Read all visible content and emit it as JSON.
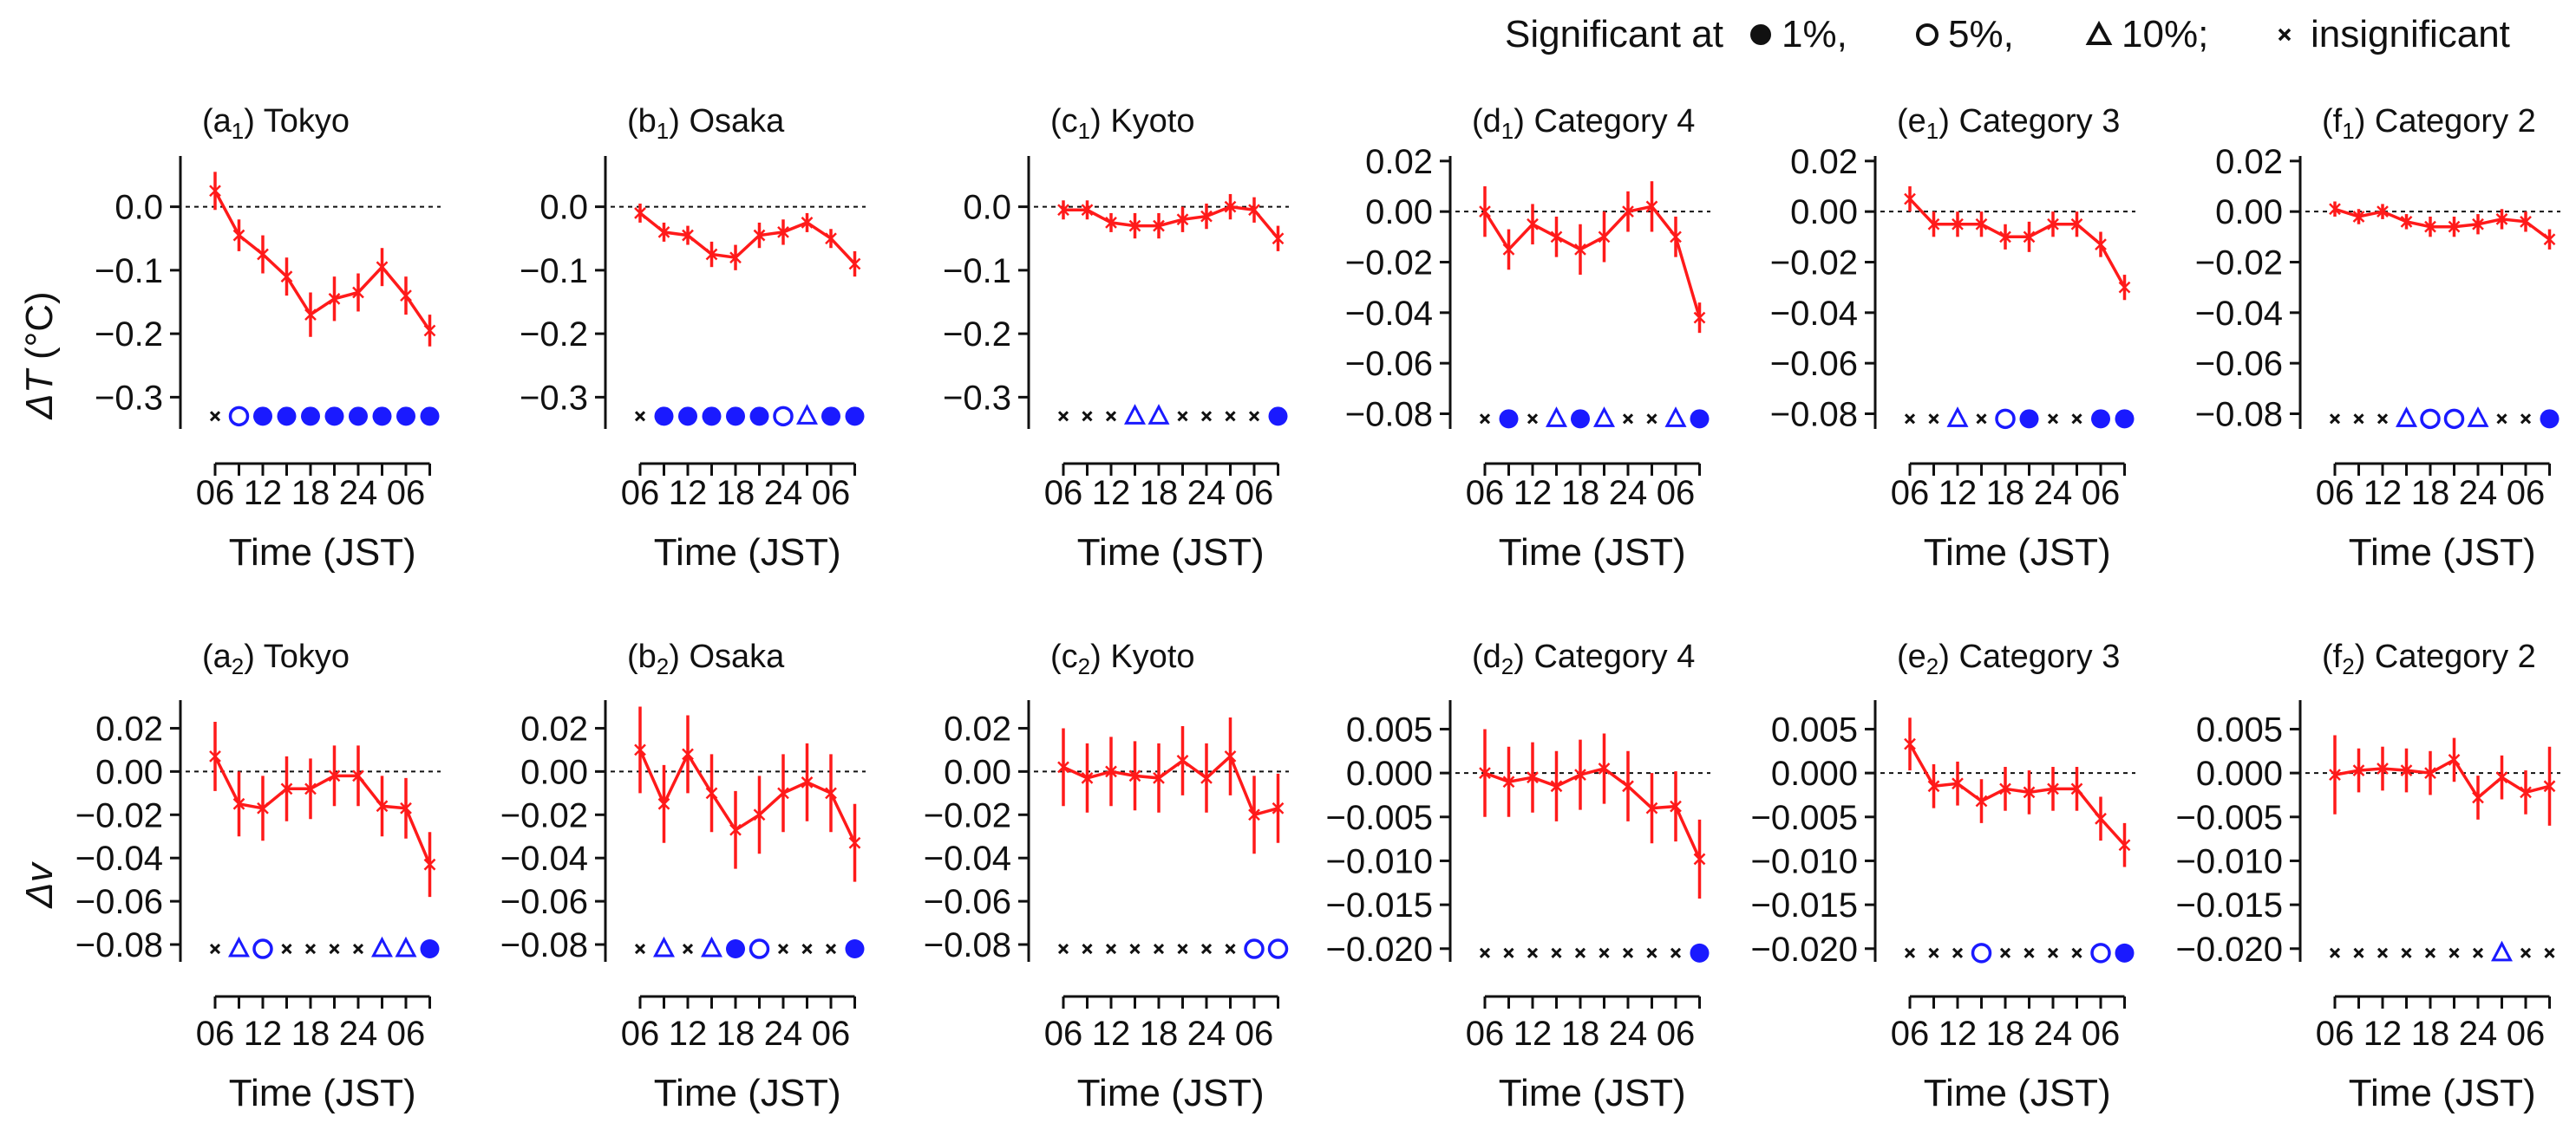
{
  "legend": {
    "prefix": "Significant at",
    "items": [
      {
        "marker": "filled-circle",
        "label": "1%,"
      },
      {
        "marker": "open-circle",
        "label": "5%,"
      },
      {
        "marker": "open-triangle",
        "label": "10%;"
      },
      {
        "marker": "cross",
        "label": "insignificant"
      }
    ]
  },
  "colors": {
    "line": "#ff1a1a",
    "sig": "#1a1aff",
    "insig": "#111111",
    "axis": "#111111"
  },
  "rows": [
    {
      "ylabel": "ΔT (°C)",
      "ylabel_var": "ΔT",
      "ylabel_unit": " (°C)"
    },
    {
      "ylabel": "Δv",
      "ylabel_var": "Δv",
      "ylabel_unit": ""
    }
  ],
  "xlabel": "Time (JST)",
  "xticks": [
    "06",
    "12",
    "18",
    "24",
    "06"
  ],
  "chart_data": [
    {
      "type": "line",
      "letter": "a",
      "sub": "1",
      "name": "Tokyo",
      "row": 0,
      "col": 0,
      "ylim": [
        -0.35,
        0.08
      ],
      "yticks": [
        0.0,
        -0.1,
        -0.2,
        -0.3
      ],
      "ytick_labels": [
        "0.0",
        "−0.1",
        "−0.2",
        "−0.3"
      ],
      "sig_level": -0.33,
      "x": [
        6,
        9,
        12,
        15,
        18,
        21,
        24,
        27,
        30,
        33
      ],
      "values": [
        0.025,
        -0.045,
        -0.075,
        -0.11,
        -0.17,
        -0.145,
        -0.135,
        -0.095,
        -0.14,
        -0.195
      ],
      "errors": [
        0.03,
        0.025,
        0.03,
        0.03,
        0.035,
        0.035,
        0.03,
        0.03,
        0.03,
        0.025
      ],
      "significance": [
        "x",
        "o",
        "F",
        "F",
        "F",
        "F",
        "F",
        "F",
        "F",
        "F"
      ]
    },
    {
      "type": "line",
      "letter": "b",
      "sub": "1",
      "name": "Osaka",
      "row": 0,
      "col": 1,
      "ylim": [
        -0.35,
        0.08
      ],
      "yticks": [
        0.0,
        -0.1,
        -0.2,
        -0.3
      ],
      "ytick_labels": [
        "0.0",
        "−0.1",
        "−0.2",
        "−0.3"
      ],
      "sig_level": -0.33,
      "x": [
        6,
        9,
        12,
        15,
        18,
        21,
        24,
        27,
        30,
        33
      ],
      "values": [
        -0.01,
        -0.04,
        -0.045,
        -0.075,
        -0.08,
        -0.045,
        -0.04,
        -0.025,
        -0.05,
        -0.09
      ],
      "errors": [
        0.015,
        0.015,
        0.015,
        0.02,
        0.02,
        0.02,
        0.02,
        0.015,
        0.015,
        0.02
      ],
      "significance": [
        "x",
        "F",
        "F",
        "F",
        "F",
        "F",
        "o",
        "T",
        "F",
        "F"
      ]
    },
    {
      "type": "line",
      "letter": "c",
      "sub": "1",
      "name": "Kyoto",
      "row": 0,
      "col": 2,
      "ylim": [
        -0.35,
        0.08
      ],
      "yticks": [
        0.0,
        -0.1,
        -0.2,
        -0.3
      ],
      "ytick_labels": [
        "0.0",
        "−0.1",
        "−0.2",
        "−0.3"
      ],
      "sig_level": -0.33,
      "x": [
        6,
        9,
        12,
        15,
        18,
        21,
        24,
        27,
        30,
        33
      ],
      "values": [
        -0.005,
        -0.005,
        -0.025,
        -0.03,
        -0.03,
        -0.02,
        -0.015,
        0.0,
        -0.005,
        -0.05
      ],
      "errors": [
        0.015,
        0.015,
        0.015,
        0.02,
        0.02,
        0.02,
        0.02,
        0.02,
        0.02,
        0.02
      ],
      "significance": [
        "x",
        "x",
        "x",
        "T",
        "T",
        "x",
        "x",
        "x",
        "x",
        "F"
      ]
    },
    {
      "type": "line",
      "letter": "d",
      "sub": "1",
      "name": "Category 4",
      "row": 0,
      "col": 3,
      "ylim": [
        -0.086,
        0.022
      ],
      "yticks": [
        0.02,
        0.0,
        -0.02,
        -0.04,
        -0.06,
        -0.08
      ],
      "ytick_labels": [
        "0.02",
        "0.00",
        "−0.02",
        "−0.04",
        "−0.06",
        "−0.08"
      ],
      "sig_level": -0.082,
      "x": [
        6,
        9,
        12,
        15,
        18,
        21,
        24,
        27,
        30,
        33
      ],
      "values": [
        0.0,
        -0.015,
        -0.005,
        -0.01,
        -0.015,
        -0.01,
        0.0,
        0.002,
        -0.01,
        -0.042
      ],
      "errors": [
        0.01,
        0.008,
        0.008,
        0.008,
        0.01,
        0.01,
        0.008,
        0.01,
        0.008,
        0.006
      ],
      "significance": [
        "x",
        "F",
        "x",
        "T",
        "F",
        "T",
        "x",
        "x",
        "T",
        "F"
      ]
    },
    {
      "type": "line",
      "letter": "e",
      "sub": "1",
      "name": "Category 3",
      "row": 0,
      "col": 4,
      "ylim": [
        -0.086,
        0.022
      ],
      "yticks": [
        0.02,
        0.0,
        -0.02,
        -0.04,
        -0.06,
        -0.08
      ],
      "ytick_labels": [
        "0.02",
        "0.00",
        "−0.02",
        "−0.04",
        "−0.06",
        "−0.08"
      ],
      "sig_level": -0.082,
      "x": [
        6,
        9,
        12,
        15,
        18,
        21,
        24,
        27,
        30,
        33
      ],
      "values": [
        0.005,
        -0.005,
        -0.005,
        -0.005,
        -0.01,
        -0.01,
        -0.005,
        -0.005,
        -0.013,
        -0.03
      ],
      "errors": [
        0.005,
        0.005,
        0.005,
        0.005,
        0.005,
        0.006,
        0.005,
        0.005,
        0.005,
        0.005
      ],
      "significance": [
        "x",
        "x",
        "T",
        "x",
        "o",
        "F",
        "x",
        "x",
        "F",
        "F"
      ]
    },
    {
      "type": "line",
      "letter": "f",
      "sub": "1",
      "name": "Category 2",
      "row": 0,
      "col": 5,
      "ylim": [
        -0.086,
        0.022
      ],
      "yticks": [
        0.02,
        0.0,
        -0.02,
        -0.04,
        -0.06,
        -0.08
      ],
      "ytick_labels": [
        "0.02",
        "0.00",
        "−0.02",
        "−0.04",
        "−0.06",
        "−0.08"
      ],
      "sig_level": -0.082,
      "x": [
        6,
        9,
        12,
        15,
        18,
        21,
        24,
        27,
        30,
        33
      ],
      "values": [
        0.001,
        -0.002,
        0.0,
        -0.004,
        -0.006,
        -0.006,
        -0.005,
        -0.003,
        -0.004,
        -0.011
      ],
      "errors": [
        0.003,
        0.003,
        0.003,
        0.003,
        0.004,
        0.004,
        0.004,
        0.004,
        0.004,
        0.004
      ],
      "significance": [
        "x",
        "x",
        "x",
        "T",
        "o",
        "o",
        "T",
        "x",
        "x",
        "F"
      ]
    },
    {
      "type": "line",
      "letter": "a",
      "sub": "2",
      "name": "Tokyo",
      "row": 1,
      "col": 0,
      "ylim": [
        -0.088,
        0.033
      ],
      "yticks": [
        0.02,
        0.0,
        -0.02,
        -0.04,
        -0.06,
        -0.08
      ],
      "ytick_labels": [
        "0.02",
        "0.00",
        "−0.02",
        "−0.04",
        "−0.06",
        "−0.08"
      ],
      "sig_level": -0.082,
      "x": [
        6,
        9,
        12,
        15,
        18,
        21,
        24,
        27,
        30,
        33
      ],
      "values": [
        0.007,
        -0.015,
        -0.017,
        -0.008,
        -0.008,
        -0.002,
        -0.002,
        -0.016,
        -0.017,
        -0.043
      ],
      "errors": [
        0.016,
        0.015,
        0.015,
        0.015,
        0.014,
        0.014,
        0.014,
        0.014,
        0.014,
        0.015
      ],
      "significance": [
        "x",
        "T",
        "o",
        "x",
        "x",
        "x",
        "x",
        "T",
        "T",
        "F"
      ]
    },
    {
      "type": "line",
      "letter": "b",
      "sub": "2",
      "name": "Osaka",
      "row": 1,
      "col": 1,
      "ylim": [
        -0.088,
        0.033
      ],
      "yticks": [
        0.02,
        0.0,
        -0.02,
        -0.04,
        -0.06,
        -0.08
      ],
      "ytick_labels": [
        "0.02",
        "0.00",
        "−0.02",
        "−0.04",
        "−0.06",
        "−0.08"
      ],
      "sig_level": -0.082,
      "x": [
        6,
        9,
        12,
        15,
        18,
        21,
        24,
        27,
        30,
        33
      ],
      "values": [
        0.01,
        -0.015,
        0.008,
        -0.01,
        -0.027,
        -0.02,
        -0.01,
        -0.005,
        -0.01,
        -0.033
      ],
      "errors": [
        0.02,
        0.018,
        0.018,
        0.018,
        0.018,
        0.018,
        0.018,
        0.018,
        0.018,
        0.018
      ],
      "significance": [
        "x",
        "T",
        "x",
        "T",
        "F",
        "o",
        "x",
        "x",
        "x",
        "F"
      ]
    },
    {
      "type": "line",
      "letter": "c",
      "sub": "2",
      "name": "Kyoto",
      "row": 1,
      "col": 2,
      "ylim": [
        -0.088,
        0.033
      ],
      "yticks": [
        0.02,
        0.0,
        -0.02,
        -0.04,
        -0.06,
        -0.08
      ],
      "ytick_labels": [
        "0.02",
        "0.00",
        "−0.02",
        "−0.04",
        "−0.06",
        "−0.08"
      ],
      "sig_level": -0.082,
      "x": [
        6,
        9,
        12,
        15,
        18,
        21,
        24,
        27,
        30,
        33
      ],
      "values": [
        0.002,
        -0.003,
        0.0,
        -0.002,
        -0.003,
        0.005,
        -0.003,
        0.007,
        -0.02,
        -0.017
      ],
      "errors": [
        0.018,
        0.016,
        0.016,
        0.016,
        0.016,
        0.016,
        0.016,
        0.018,
        0.018,
        0.016
      ],
      "significance": [
        "x",
        "x",
        "x",
        "x",
        "x",
        "x",
        "x",
        "x",
        "o",
        "o"
      ]
    },
    {
      "type": "line",
      "letter": "d",
      "sub": "2",
      "name": "Category 4",
      "row": 1,
      "col": 3,
      "ylim": [
        -0.0215,
        0.0083
      ],
      "yticks": [
        0.005,
        0.0,
        -0.005,
        -0.01,
        -0.015,
        -0.02
      ],
      "ytick_labels": [
        "0.005",
        "0.000",
        "−0.005",
        "−0.010",
        "−0.015",
        "−0.020"
      ],
      "sig_level": -0.0205,
      "x": [
        6,
        9,
        12,
        15,
        18,
        21,
        24,
        27,
        30,
        33
      ],
      "values": [
        0.0,
        -0.001,
        -0.0005,
        -0.0015,
        -0.0002,
        0.0005,
        -0.0015,
        -0.004,
        -0.0038,
        -0.0098
      ],
      "errors": [
        0.005,
        0.004,
        0.004,
        0.004,
        0.004,
        0.004,
        0.004,
        0.004,
        0.004,
        0.0045
      ],
      "significance": [
        "x",
        "x",
        "x",
        "x",
        "x",
        "x",
        "x",
        "x",
        "x",
        "F"
      ]
    },
    {
      "type": "line",
      "letter": "e",
      "sub": "2",
      "name": "Category 3",
      "row": 1,
      "col": 4,
      "ylim": [
        -0.0215,
        0.0083
      ],
      "yticks": [
        0.005,
        0.0,
        -0.005,
        -0.01,
        -0.015,
        -0.02
      ],
      "ytick_labels": [
        "0.005",
        "0.000",
        "−0.005",
        "−0.010",
        "−0.015",
        "−0.020"
      ],
      "sig_level": -0.0205,
      "x": [
        6,
        9,
        12,
        15,
        18,
        21,
        24,
        27,
        30,
        33
      ],
      "values": [
        0.0033,
        -0.0015,
        -0.0012,
        -0.0032,
        -0.0018,
        -0.0022,
        -0.0018,
        -0.0018,
        -0.0052,
        -0.0082
      ],
      "errors": [
        0.003,
        0.0025,
        0.0025,
        0.0025,
        0.0025,
        0.0025,
        0.0025,
        0.0025,
        0.0025,
        0.0025
      ],
      "significance": [
        "x",
        "x",
        "x",
        "o",
        "x",
        "x",
        "x",
        "x",
        "o",
        "F"
      ]
    },
    {
      "type": "line",
      "letter": "f",
      "sub": "2",
      "name": "Category 2",
      "row": 1,
      "col": 5,
      "ylim": [
        -0.0215,
        0.0083
      ],
      "yticks": [
        0.005,
        0.0,
        -0.005,
        -0.01,
        -0.015,
        -0.02
      ],
      "ytick_labels": [
        "0.005",
        "0.000",
        "−0.005",
        "−0.010",
        "−0.015",
        "−0.020"
      ],
      "sig_level": -0.0205,
      "x": [
        6,
        9,
        12,
        15,
        18,
        21,
        24,
        27,
        30,
        33
      ],
      "values": [
        -0.0002,
        0.0003,
        0.0005,
        0.0003,
        0.0,
        0.0015,
        -0.0028,
        -0.0005,
        -0.0022,
        -0.0015
      ],
      "errors": [
        0.0045,
        0.0025,
        0.0025,
        0.0025,
        0.0025,
        0.0025,
        0.0025,
        0.0025,
        0.0025,
        0.0045
      ],
      "significance": [
        "x",
        "x",
        "x",
        "x",
        "x",
        "x",
        "x",
        "T",
        "x",
        "x"
      ]
    }
  ]
}
